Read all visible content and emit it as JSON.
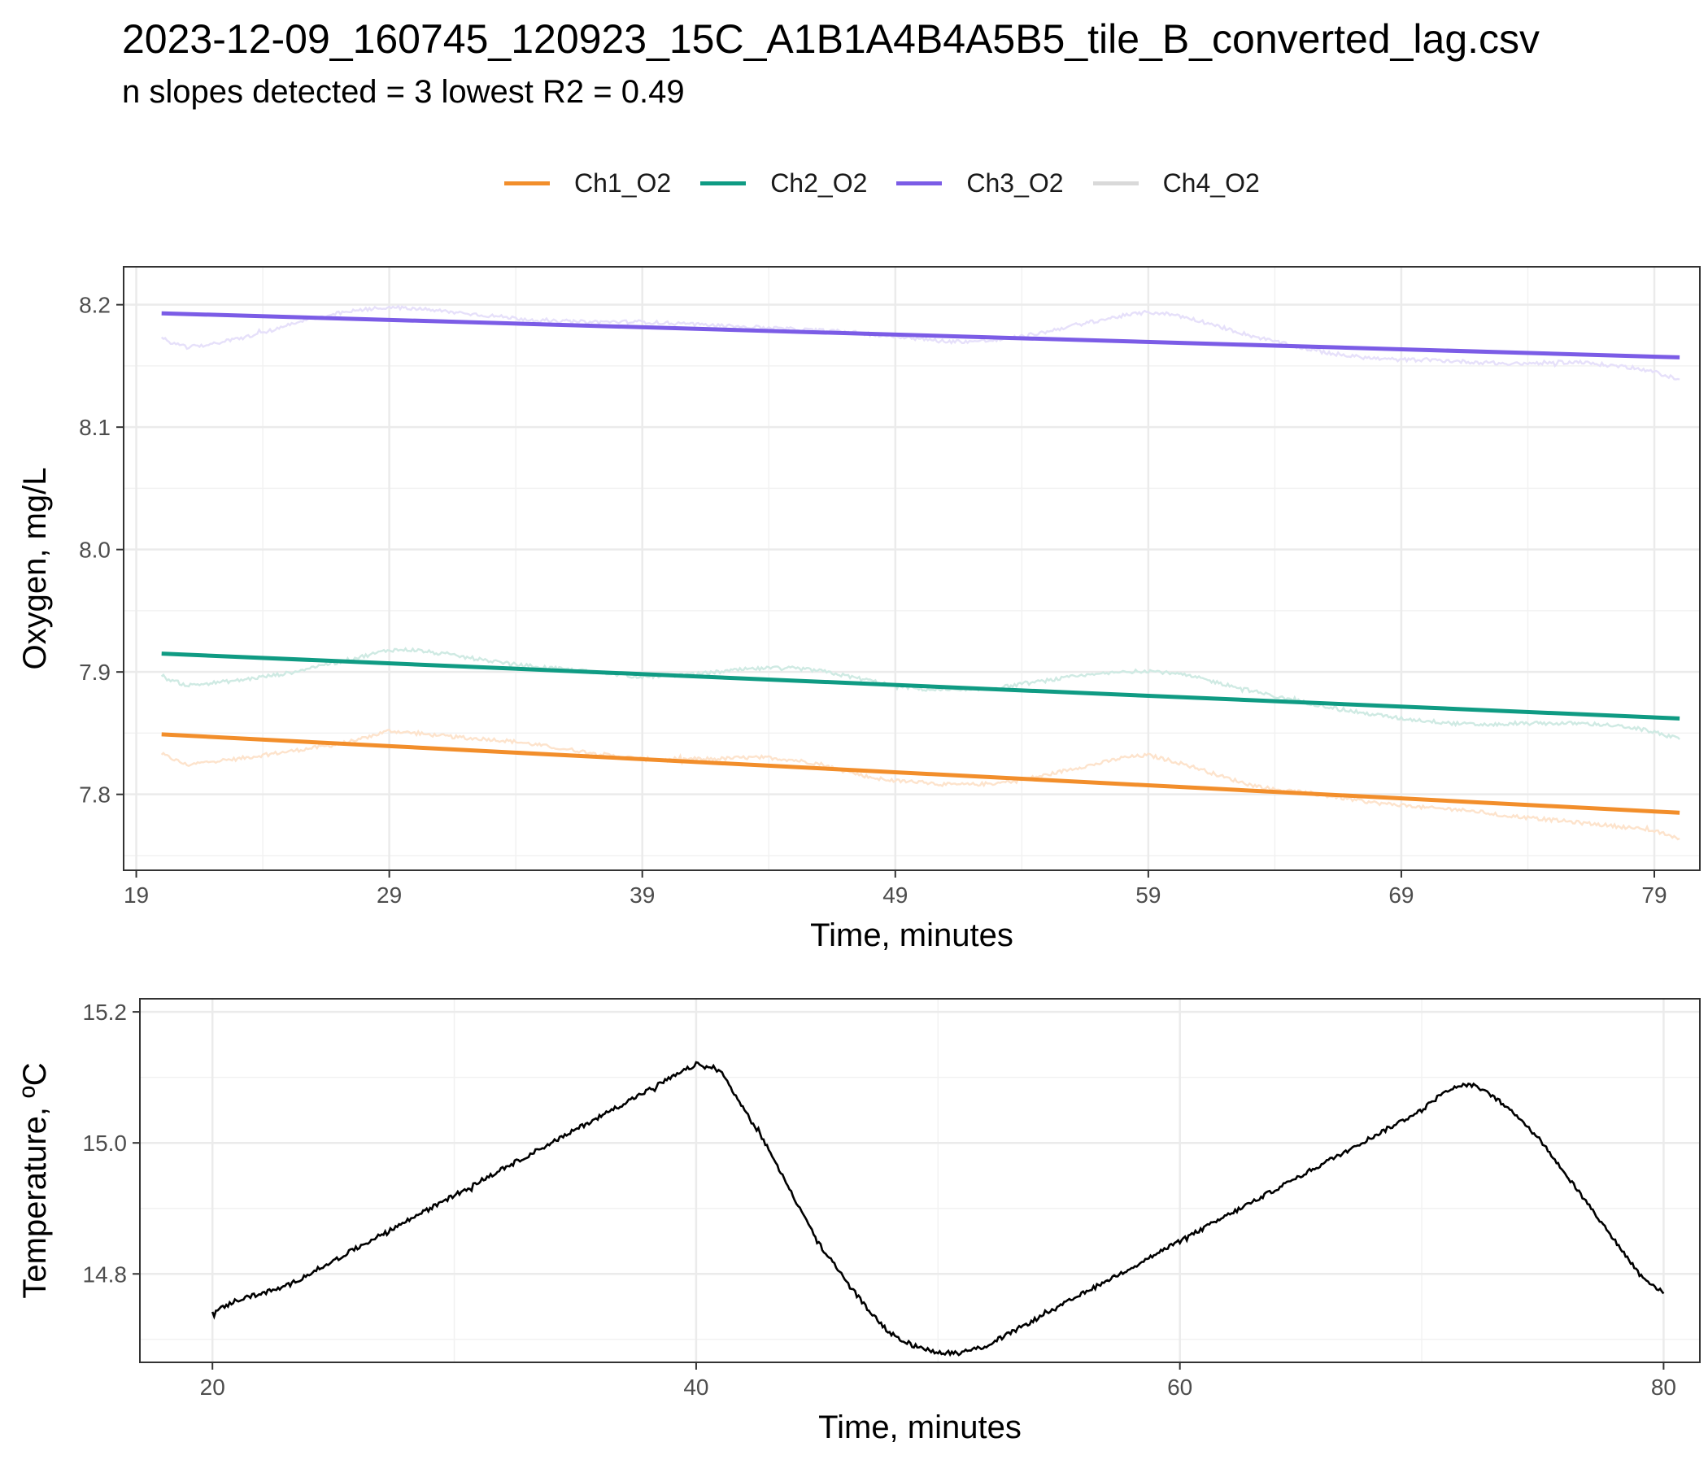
{
  "title": "2023-12-09_160745_120923_15C_A1B1A4B4A5B5_tile_B_converted_lag.csv",
  "subtitle": "n slopes detected = 3  lowest R2 = 0.49",
  "legend": [
    {
      "label": "Ch1_O2",
      "color": "#f28e2b"
    },
    {
      "label": "Ch2_O2",
      "color": "#0f9b83"
    },
    {
      "label": "Ch3_O2",
      "color": "#7b5ce6"
    },
    {
      "label": "Ch4_O2",
      "color": "#d9d9d9"
    }
  ],
  "chart_data": [
    {
      "type": "line",
      "xlabel": "Time, minutes",
      "ylabel": "Oxygen, mg/L",
      "xlim": [
        18.5,
        80.8
      ],
      "ylim": [
        7.738,
        8.231
      ],
      "xticks": [
        19,
        29,
        39,
        49,
        59,
        69,
        79
      ],
      "yticks": [
        7.8,
        7.9,
        8.0,
        8.1,
        8.2
      ],
      "grid": true,
      "legend_position": "top",
      "series": [
        {
          "name": "Ch1_O2",
          "role": "raw",
          "color": "#fde3cc",
          "x": [
            20,
            21,
            22,
            23,
            24,
            25,
            26,
            27,
            28,
            29,
            30,
            31,
            32,
            33,
            34,
            35,
            36,
            37,
            38,
            39,
            40,
            41,
            42,
            43,
            44,
            45,
            46,
            47,
            48,
            49,
            50,
            51,
            52,
            53,
            54,
            55,
            56,
            57,
            58,
            59,
            60,
            61,
            62,
            63,
            64,
            65,
            66,
            67,
            68,
            69,
            70,
            71,
            72,
            73,
            74,
            75,
            76,
            77,
            78,
            79,
            80
          ],
          "y": [
            7.833,
            7.824,
            7.827,
            7.829,
            7.832,
            7.835,
            7.838,
            7.841,
            7.846,
            7.852,
            7.85,
            7.848,
            7.846,
            7.845,
            7.843,
            7.84,
            7.837,
            7.834,
            7.831,
            7.829,
            7.828,
            7.829,
            7.829,
            7.83,
            7.83,
            7.828,
            7.825,
            7.819,
            7.814,
            7.811,
            7.81,
            7.808,
            7.808,
            7.809,
            7.812,
            7.816,
            7.821,
            7.825,
            7.83,
            7.832,
            7.827,
            7.821,
            7.814,
            7.808,
            7.804,
            7.802,
            7.799,
            7.796,
            7.793,
            7.791,
            7.789,
            7.788,
            7.786,
            7.783,
            7.781,
            7.779,
            7.777,
            7.775,
            7.773,
            7.77,
            7.764
          ]
        },
        {
          "name": "Ch1_O2",
          "role": "fit",
          "color": "#f28e2b",
          "x": [
            20,
            80
          ],
          "y": [
            7.849,
            7.785
          ]
        },
        {
          "name": "Ch2_O2",
          "role": "raw",
          "color": "#cfeae3",
          "x": [
            20,
            21,
            22,
            23,
            24,
            25,
            26,
            27,
            28,
            29,
            30,
            31,
            32,
            33,
            34,
            35,
            36,
            37,
            38,
            39,
            40,
            41,
            42,
            43,
            44,
            45,
            46,
            47,
            48,
            49,
            50,
            51,
            52,
            53,
            54,
            55,
            56,
            57,
            58,
            59,
            60,
            61,
            62,
            63,
            64,
            65,
            66,
            67,
            68,
            69,
            70,
            71,
            72,
            73,
            74,
            75,
            76,
            77,
            78,
            79,
            80
          ],
          "y": [
            7.896,
            7.889,
            7.891,
            7.893,
            7.896,
            7.899,
            7.904,
            7.908,
            7.913,
            7.918,
            7.918,
            7.915,
            7.912,
            7.909,
            7.906,
            7.904,
            7.902,
            7.9,
            7.898,
            7.896,
            7.897,
            7.898,
            7.9,
            7.902,
            7.903,
            7.903,
            7.901,
            7.897,
            7.893,
            7.889,
            7.886,
            7.885,
            7.885,
            7.887,
            7.89,
            7.893,
            7.896,
            7.898,
            7.9,
            7.901,
            7.899,
            7.895,
            7.89,
            7.885,
            7.88,
            7.876,
            7.872,
            7.868,
            7.865,
            7.862,
            7.86,
            7.858,
            7.857,
            7.857,
            7.858,
            7.858,
            7.858,
            7.857,
            7.855,
            7.851,
            7.845
          ]
        },
        {
          "name": "Ch2_O2",
          "role": "fit",
          "color": "#0f9b83",
          "x": [
            20,
            80
          ],
          "y": [
            7.915,
            7.862
          ]
        },
        {
          "name": "Ch3_O2",
          "role": "raw",
          "color": "#e6e0fa",
          "x": [
            20,
            21,
            22,
            23,
            24,
            25,
            26,
            27,
            28,
            29,
            30,
            31,
            32,
            33,
            34,
            35,
            36,
            37,
            38,
            39,
            40,
            41,
            42,
            43,
            44,
            45,
            46,
            47,
            48,
            49,
            50,
            51,
            52,
            53,
            54,
            55,
            56,
            57,
            58,
            59,
            60,
            61,
            62,
            63,
            64,
            65,
            66,
            67,
            68,
            69,
            70,
            71,
            72,
            73,
            74,
            75,
            76,
            77,
            78,
            79,
            80
          ],
          "y": [
            8.172,
            8.165,
            8.168,
            8.172,
            8.177,
            8.183,
            8.189,
            8.193,
            8.196,
            8.198,
            8.197,
            8.195,
            8.193,
            8.191,
            8.189,
            8.187,
            8.186,
            8.186,
            8.186,
            8.186,
            8.185,
            8.184,
            8.183,
            8.182,
            8.181,
            8.18,
            8.179,
            8.178,
            8.176,
            8.174,
            8.172,
            8.17,
            8.17,
            8.171,
            8.174,
            8.178,
            8.183,
            8.187,
            8.191,
            8.194,
            8.192,
            8.187,
            8.181,
            8.175,
            8.17,
            8.165,
            8.161,
            8.158,
            8.156,
            8.155,
            8.155,
            8.154,
            8.153,
            8.152,
            8.152,
            8.153,
            8.153,
            8.151,
            8.149,
            8.145,
            8.139
          ]
        },
        {
          "name": "Ch3_O2",
          "role": "fit",
          "color": "#7b5ce6",
          "x": [
            20,
            80
          ],
          "y": [
            8.193,
            8.157
          ]
        }
      ]
    },
    {
      "type": "line",
      "xlabel": "Time, minutes",
      "ylabel": "Temperature, ºC",
      "xlim": [
        17,
        81.5
      ],
      "ylim": [
        14.665,
        15.22
      ],
      "xticks": [
        20,
        40,
        60,
        80
      ],
      "yticks": [
        14.8,
        15.0,
        15.2
      ],
      "grid": true,
      "series": [
        {
          "color": "#000000",
          "x": [
            20,
            21,
            22,
            23,
            24,
            25,
            26,
            27,
            28,
            29,
            30,
            31,
            32,
            33,
            34,
            35,
            36,
            37,
            38,
            39,
            40,
            41,
            42,
            43,
            44,
            45,
            46,
            47,
            48,
            49,
            50,
            51,
            52,
            53,
            54,
            55,
            56,
            57,
            58,
            59,
            60,
            61,
            62,
            63,
            64,
            65,
            66,
            67,
            68,
            69,
            70,
            71,
            72,
            73,
            74,
            75,
            76,
            77,
            78,
            79,
            80
          ],
          "y": [
            14.74,
            14.76,
            14.77,
            14.78,
            14.8,
            14.82,
            14.84,
            14.86,
            14.88,
            14.9,
            14.92,
            14.94,
            14.96,
            14.98,
            15.0,
            15.02,
            15.04,
            15.06,
            15.08,
            15.1,
            15.12,
            15.11,
            15.05,
            14.99,
            14.92,
            14.85,
            14.8,
            14.75,
            14.71,
            14.69,
            14.68,
            14.68,
            14.69,
            14.71,
            14.73,
            14.75,
            14.77,
            14.79,
            14.81,
            14.83,
            14.85,
            14.87,
            14.89,
            14.91,
            14.93,
            14.95,
            14.97,
            14.99,
            15.01,
            15.03,
            15.05,
            15.08,
            15.09,
            15.07,
            15.04,
            15.0,
            14.95,
            14.9,
            14.85,
            14.8,
            14.77
          ]
        }
      ]
    }
  ]
}
